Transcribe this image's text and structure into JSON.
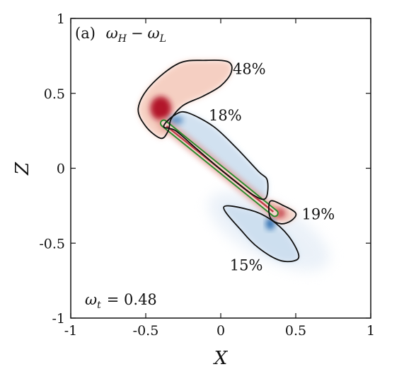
{
  "chart_data": {
    "type": "contour",
    "panel_label": "(a)",
    "title_math": "ωH − ωL",
    "xlabel": "X",
    "ylabel": "Z",
    "xlim": [
      -1,
      1
    ],
    "ylim": [
      -1,
      1
    ],
    "xticks": [
      -1,
      -0.5,
      0,
      0.5,
      1
    ],
    "xtick_labels": [
      "-1",
      "-0.5",
      "0",
      "0.5",
      "1"
    ],
    "yticks": [
      -1,
      -0.5,
      0,
      0.5,
      1
    ],
    "ytick_labels": [
      "-1",
      "-0.5",
      "0",
      "0.5",
      "1"
    ],
    "grid": false,
    "annotation": {
      "lhs": "ωt",
      "rhs": "= 0.48"
    },
    "colors": {
      "positive": "#b2182b",
      "negative": "#2166ac",
      "plate_outline": "#2e8b2e",
      "contour": "#111111"
    },
    "plate": {
      "x1": -0.38,
      "z1": 0.3,
      "x2": 0.36,
      "z2": -0.3
    },
    "regions": [
      {
        "sign": "positive",
        "label": "48%",
        "outline": [
          [
            -0.4,
            0.2
          ],
          [
            -0.5,
            0.28
          ],
          [
            -0.55,
            0.4
          ],
          [
            -0.47,
            0.55
          ],
          [
            -0.28,
            0.7
          ],
          [
            -0.1,
            0.72
          ],
          [
            0.05,
            0.71
          ],
          [
            0.07,
            0.64
          ],
          [
            0.0,
            0.55
          ],
          [
            -0.12,
            0.48
          ],
          [
            -0.25,
            0.42
          ],
          [
            -0.33,
            0.33
          ],
          [
            -0.35,
            0.25
          ]
        ],
        "core": {
          "x": -0.4,
          "z": 0.4,
          "rx": 0.07,
          "rz": 0.08,
          "intensity": 1.0
        },
        "label_pos": [
          0.08,
          0.63
        ]
      },
      {
        "sign": "negative",
        "label": "18%",
        "outline": [
          [
            -0.38,
            0.28
          ],
          [
            -0.3,
            0.36
          ],
          [
            -0.22,
            0.37
          ],
          [
            -0.05,
            0.28
          ],
          [
            0.1,
            0.14
          ],
          [
            0.25,
            -0.02
          ],
          [
            0.31,
            -0.08
          ],
          [
            0.3,
            -0.2
          ],
          [
            0.22,
            -0.18
          ],
          [
            0.05,
            -0.05
          ],
          [
            -0.15,
            0.12
          ],
          [
            -0.3,
            0.25
          ]
        ],
        "core": {
          "x": -0.3,
          "z": 0.32,
          "rx": 0.05,
          "rz": 0.03,
          "intensity": 0.6
        },
        "label_pos": [
          -0.08,
          0.32
        ]
      },
      {
        "sign": "positive",
        "label": "19%",
        "outline": [
          [
            0.33,
            -0.22
          ],
          [
            0.42,
            -0.25
          ],
          [
            0.5,
            -0.3
          ],
          [
            0.47,
            -0.35
          ],
          [
            0.4,
            -0.37
          ],
          [
            0.33,
            -0.33
          ]
        ],
        "core": {
          "x": 0.39,
          "z": -0.3,
          "rx": 0.04,
          "rz": 0.03,
          "intensity": 0.8
        },
        "label_pos": [
          0.54,
          -0.34
        ]
      },
      {
        "sign": "negative",
        "label": "15%",
        "outline": [
          [
            0.02,
            -0.26
          ],
          [
            0.2,
            -0.28
          ],
          [
            0.33,
            -0.34
          ],
          [
            0.45,
            -0.45
          ],
          [
            0.52,
            -0.58
          ],
          [
            0.48,
            -0.62
          ],
          [
            0.38,
            -0.61
          ],
          [
            0.25,
            -0.53
          ],
          [
            0.15,
            -0.43
          ]
        ],
        "core": {
          "x": 0.33,
          "z": -0.37,
          "rx": 0.03,
          "rz": 0.04,
          "intensity": 0.9
        },
        "label_pos": [
          0.06,
          -0.68
        ]
      }
    ]
  }
}
